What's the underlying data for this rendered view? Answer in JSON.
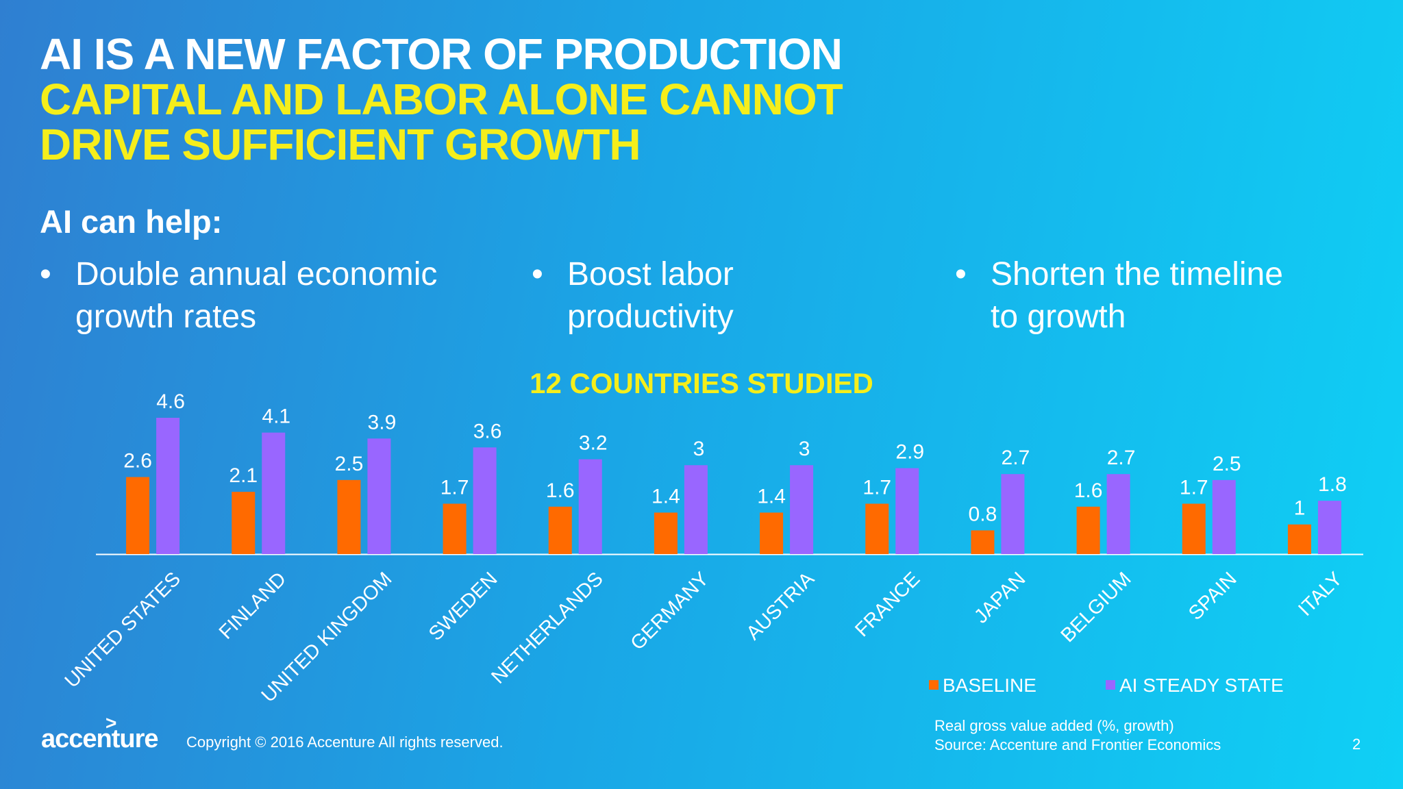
{
  "title": {
    "line1": "AI IS A NEW FACTOR OF PRODUCTION",
    "line2": "CAPITAL AND LABOR ALONE CANNOT",
    "line3": "DRIVE SUFFICIENT GROWTH"
  },
  "subheading": "AI can help:",
  "bullets": [
    {
      "mark": "•",
      "text": "Double annual economic growth rates"
    },
    {
      "mark": "•",
      "text": "Boost labor productivity"
    },
    {
      "mark": "•",
      "text": "Shorten the timeline to growth"
    }
  ],
  "chart_data": {
    "type": "bar",
    "title": "12 COUNTRIES STUDIED",
    "categories": [
      "UNITED STATES",
      "FINLAND",
      "UNITED KINGDOM",
      "SWEDEN",
      "NETHERLANDS",
      "GERMANY",
      "AUSTRIA",
      "FRANCE",
      "JAPAN",
      "BELGIUM",
      "SPAIN",
      "ITALY"
    ],
    "series": [
      {
        "name": "BASELINE",
        "color": "#ff6a00",
        "values": [
          2.6,
          2.1,
          2.5,
          1.7,
          1.6,
          1.4,
          1.4,
          1.7,
          0.8,
          1.6,
          1.7,
          1
        ]
      },
      {
        "name": "AI STEADY STATE",
        "color": "#9966ff",
        "values": [
          4.6,
          4.1,
          3.9,
          3.6,
          3.2,
          3,
          3,
          2.9,
          2.7,
          2.7,
          2.5,
          1.8
        ]
      }
    ],
    "ylim": [
      0,
      4.6
    ],
    "grid": false,
    "legend": "bottom-right",
    "title_color": "#f5ee1b"
  },
  "footer": {
    "logo_text": "accenture",
    "logo_mark": ">",
    "copyright": "Copyright © 2016 Accenture  All rights reserved.",
    "note_line1": "Real gross value added (%, growth)",
    "note_line2": "Source: Accenture and Frontier Economics",
    "page_number": "2"
  }
}
